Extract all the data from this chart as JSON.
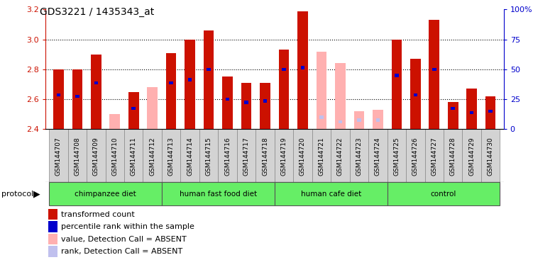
{
  "title": "GDS3221 / 1435343_at",
  "samples": [
    "GSM144707",
    "GSM144708",
    "GSM144709",
    "GSM144710",
    "GSM144711",
    "GSM144712",
    "GSM144713",
    "GSM144714",
    "GSM144715",
    "GSM144716",
    "GSM144717",
    "GSM144718",
    "GSM144719",
    "GSM144720",
    "GSM144721",
    "GSM144722",
    "GSM144723",
    "GSM144724",
    "GSM144725",
    "GSM144726",
    "GSM144727",
    "GSM144728",
    "GSM144729",
    "GSM144730"
  ],
  "red_values": [
    2.8,
    2.8,
    2.9,
    null,
    2.65,
    null,
    2.91,
    3.0,
    3.06,
    2.75,
    2.71,
    2.71,
    2.93,
    3.19,
    null,
    null,
    null,
    null,
    3.0,
    2.87,
    3.13,
    2.58,
    2.67,
    2.62
  ],
  "blue_rank_vals": [
    2.63,
    2.62,
    2.71,
    null,
    2.54,
    null,
    2.71,
    2.73,
    2.8,
    2.6,
    2.58,
    2.59,
    2.8,
    2.81,
    null,
    null,
    null,
    null,
    2.76,
    2.63,
    2.8,
    2.54,
    2.51,
    2.52
  ],
  "pink_values": [
    null,
    null,
    null,
    2.5,
    null,
    2.68,
    null,
    null,
    null,
    null,
    null,
    null,
    null,
    null,
    2.92,
    2.84,
    2.52,
    2.53,
    null,
    null,
    null,
    null,
    null,
    null
  ],
  "lavender_rank_vals": [
    null,
    null,
    null,
    null,
    null,
    null,
    null,
    null,
    null,
    null,
    null,
    null,
    null,
    null,
    2.48,
    2.45,
    2.46,
    2.46,
    null,
    null,
    null,
    null,
    null,
    null
  ],
  "groups": [
    {
      "label": "chimpanzee diet",
      "start": 0,
      "end": 5
    },
    {
      "label": "human fast food diet",
      "start": 6,
      "end": 11
    },
    {
      "label": "human cafe diet",
      "start": 12,
      "end": 17
    },
    {
      "label": "control",
      "start": 18,
      "end": 23
    }
  ],
  "ymin": 2.4,
  "ymax": 3.2,
  "bar_width": 0.55,
  "grid_lines": [
    2.6,
    2.8,
    3.0
  ],
  "yticks_left": [
    2.4,
    2.6,
    2.8,
    3.0,
    3.2
  ],
  "yticks_right": [
    0,
    25,
    50,
    75,
    100
  ],
  "ytick_right_labels": [
    "0",
    "25",
    "50",
    "75",
    "100%"
  ],
  "red_color": "#cc1100",
  "blue_color": "#0000cc",
  "pink_color": "#ffb0b0",
  "lavender_color": "#c0c0ee",
  "group_fill": "#66ee66",
  "group_border": "#555555",
  "xtick_bg": "#d3d3d3",
  "xtick_border": "#888888",
  "legend_items": [
    {
      "color": "#cc1100",
      "label": "transformed count"
    },
    {
      "color": "#0000cc",
      "label": "percentile rank within the sample"
    },
    {
      "color": "#ffb0b0",
      "label": "value, Detection Call = ABSENT"
    },
    {
      "color": "#c0c0ee",
      "label": "rank, Detection Call = ABSENT"
    }
  ]
}
